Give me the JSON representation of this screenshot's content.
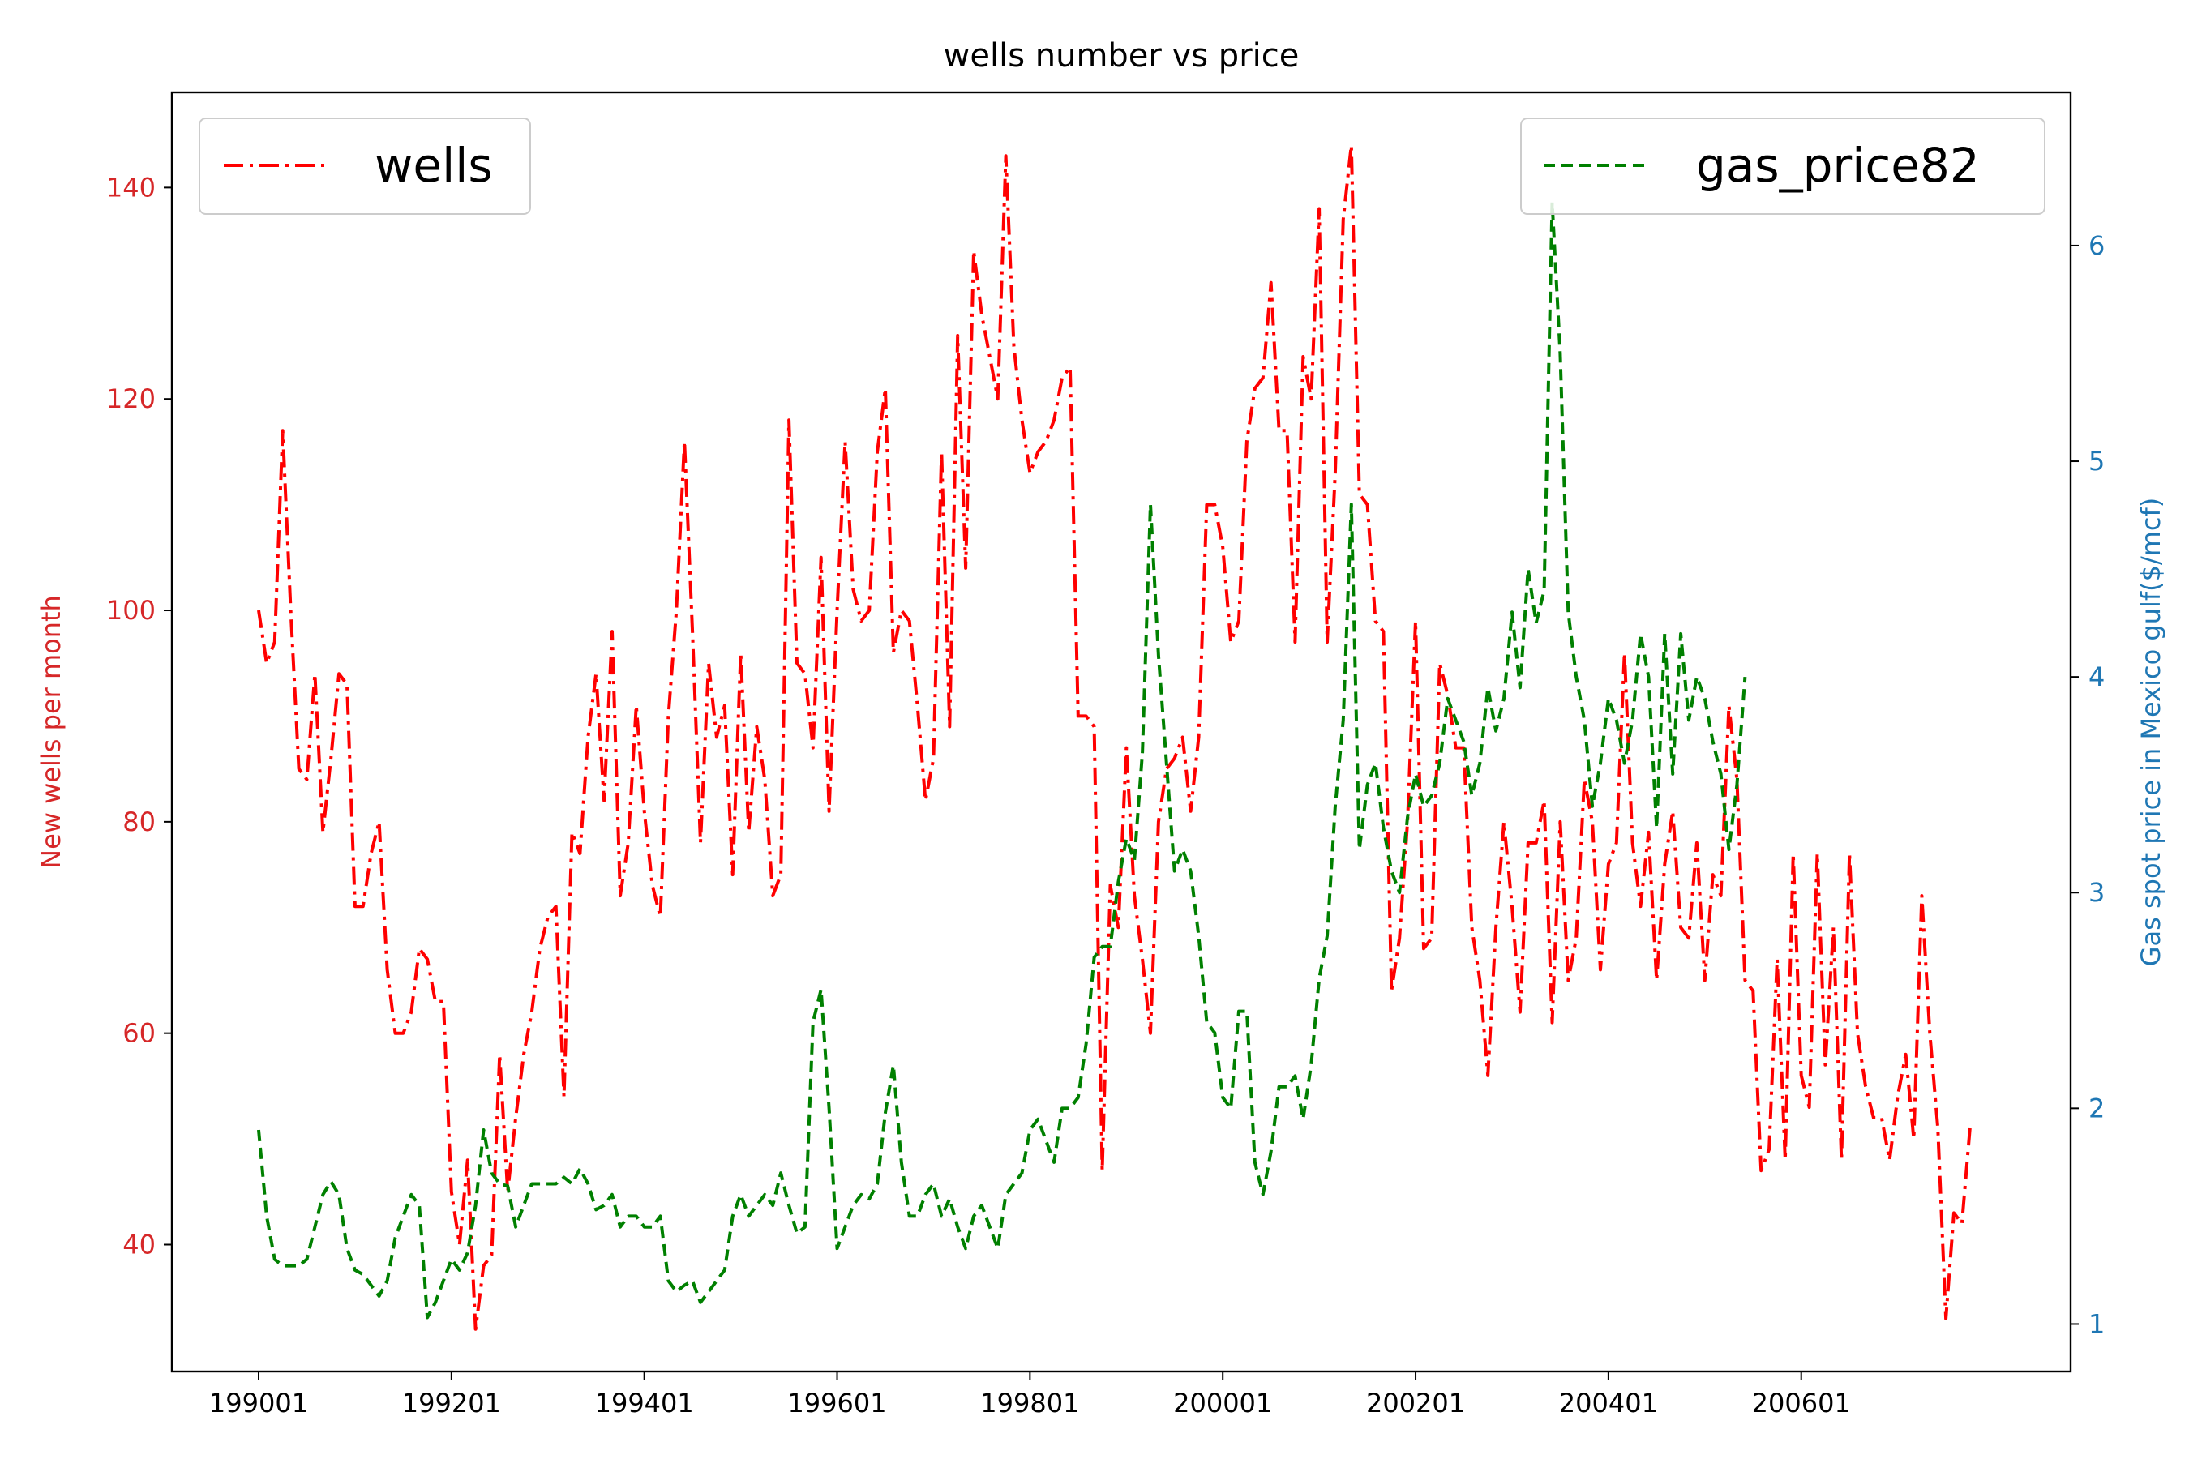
{
  "chart_data": {
    "type": "line",
    "title": "wells number vs price",
    "xlabel": "",
    "ylabel_left": "New wells per month",
    "ylabel_right": "Gas spot price in Mexico gulf($/mcf)",
    "x_tick_labels": [
      "199001",
      "199201",
      "199401",
      "199601",
      "199801",
      "200001",
      "200201",
      "200401",
      "200601"
    ],
    "x_tick_index": [
      0,
      24,
      48,
      72,
      96,
      120,
      144,
      168,
      192
    ],
    "x_start": "199001",
    "x_frequency": "monthly",
    "ylim_left": [
      28,
      149
    ],
    "yticks_left": [
      40,
      60,
      80,
      100,
      120,
      140
    ],
    "ylim_right": [
      0.78,
      6.71
    ],
    "yticks_right": [
      1,
      2,
      3,
      4,
      5,
      6
    ],
    "left_axis_color": "#d62728",
    "right_axis_color": "#1f77b4",
    "grid": false,
    "legends": [
      {
        "label": "wells",
        "position": "top-left"
      },
      {
        "label": "gas_price82",
        "position": "top-right"
      }
    ],
    "series": [
      {
        "name": "wells",
        "axis": "left",
        "color": "#ff0000",
        "linestyle": "dashdot",
        "values": [
          100,
          95,
          97,
          117,
          100,
          85,
          84,
          94,
          79,
          86,
          94,
          93,
          72,
          72,
          77,
          80,
          66,
          60,
          60,
          62,
          68,
          67,
          63,
          63,
          45,
          40,
          48,
          32,
          38,
          39,
          58,
          45,
          52,
          58,
          62,
          68,
          71,
          72,
          54,
          79,
          77,
          88,
          94,
          82,
          98,
          73,
          78,
          91,
          81,
          74,
          71,
          90,
          100,
          116,
          98,
          78,
          95,
          88,
          91,
          75,
          96,
          79,
          89,
          84,
          73,
          75,
          118,
          95,
          94,
          87,
          105,
          81,
          100,
          116,
          102,
          99,
          100,
          115,
          121,
          96,
          100,
          99,
          91,
          82,
          86,
          115,
          89,
          126,
          104,
          134,
          128,
          124,
          120,
          143,
          125,
          118,
          113,
          115,
          116,
          118,
          122,
          123,
          90,
          90,
          89,
          47,
          74,
          70,
          87,
          73,
          67,
          60,
          80,
          85,
          86,
          88,
          81,
          88,
          110,
          110,
          106,
          97,
          99,
          116,
          121,
          122,
          131,
          117,
          117,
          97,
          124,
          120,
          138,
          97,
          113,
          137,
          144,
          111,
          110,
          99,
          98,
          64,
          69,
          80,
          99,
          68,
          69,
          95,
          92,
          87,
          87,
          70,
          65,
          56,
          70,
          80,
          72,
          62,
          78,
          78,
          82,
          61,
          80,
          65,
          69,
          84,
          80,
          66,
          76,
          78,
          96,
          78,
          72,
          79,
          65,
          76,
          81,
          70,
          69,
          78,
          65,
          75,
          73,
          91,
          84,
          65,
          64,
          47,
          49,
          67,
          48,
          77,
          56,
          53,
          77,
          57,
          70,
          48,
          77,
          60,
          55,
          52,
          52,
          48,
          54,
          58,
          50,
          73,
          60,
          51,
          33,
          43,
          42,
          51
        ]
      },
      {
        "name": "gas_price82",
        "axis": "right",
        "color": "#008000",
        "linestyle": "dashed",
        "values": [
          1.9,
          1.5,
          1.3,
          1.27,
          1.27,
          1.27,
          1.3,
          1.45,
          1.6,
          1.66,
          1.6,
          1.35,
          1.25,
          1.23,
          1.18,
          1.13,
          1.2,
          1.4,
          1.5,
          1.6,
          1.55,
          1.03,
          1.1,
          1.2,
          1.3,
          1.25,
          1.33,
          1.55,
          1.9,
          1.7,
          1.65,
          1.64,
          1.45,
          1.55,
          1.65,
          1.65,
          1.65,
          1.65,
          1.68,
          1.65,
          1.72,
          1.65,
          1.53,
          1.55,
          1.6,
          1.45,
          1.5,
          1.5,
          1.45,
          1.45,
          1.5,
          1.2,
          1.15,
          1.18,
          1.2,
          1.1,
          1.15,
          1.2,
          1.25,
          1.5,
          1.6,
          1.5,
          1.55,
          1.6,
          1.55,
          1.7,
          1.55,
          1.42,
          1.45,
          2.4,
          2.55,
          2.0,
          1.35,
          1.45,
          1.55,
          1.6,
          1.58,
          1.65,
          1.98,
          2.2,
          1.75,
          1.5,
          1.5,
          1.6,
          1.65,
          1.5,
          1.58,
          1.45,
          1.35,
          1.5,
          1.55,
          1.45,
          1.35,
          1.6,
          1.65,
          1.7,
          1.9,
          1.95,
          1.85,
          1.75,
          2.0,
          2.0,
          2.05,
          2.3,
          2.7,
          2.75,
          2.75,
          3.05,
          3.25,
          3.15,
          3.65,
          4.8,
          4.1,
          3.6,
          3.1,
          3.2,
          3.1,
          2.8,
          2.4,
          2.35,
          2.05,
          2.0,
          2.45,
          2.45,
          1.75,
          1.6,
          1.8,
          2.1,
          2.1,
          2.15,
          1.95,
          2.2,
          2.6,
          2.8,
          3.4,
          3.8,
          4.8,
          3.2,
          3.5,
          3.6,
          3.3,
          3.1,
          3.0,
          3.35,
          3.55,
          3.4,
          3.45,
          3.6,
          3.9,
          3.8,
          3.7,
          3.45,
          3.6,
          3.95,
          3.75,
          3.9,
          4.3,
          3.95,
          4.5,
          4.25,
          4.4,
          6.2,
          5.5,
          4.3,
          4.0,
          3.8,
          3.4,
          3.6,
          3.9,
          3.8,
          3.6,
          3.8,
          4.2,
          4.0,
          3.3,
          4.2,
          3.55,
          4.2,
          3.8,
          4.0,
          3.9,
          3.7,
          3.55,
          3.2,
          3.5,
          4.0
        ]
      }
    ]
  }
}
